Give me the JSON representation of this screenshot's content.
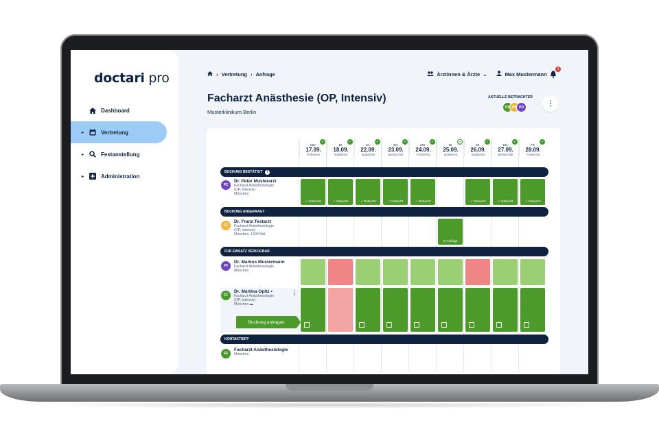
{
  "logo": {
    "main": "doctari",
    "suffix": " pro"
  },
  "sidebar": {
    "items": [
      {
        "label": "Dashboard",
        "icon": "home-icon"
      },
      {
        "label": "Vertretung",
        "icon": "calendar-icon"
      },
      {
        "label": "Festanstellung",
        "icon": "search-icon"
      },
      {
        "label": "Administration",
        "icon": "plus-icon"
      }
    ]
  },
  "breadcrumb": {
    "level1": "Vertretung",
    "level2": "Anfrage"
  },
  "header": {
    "doctors_menu": "Ärztinnen & Ärzte",
    "user_menu": "Max Mustermann",
    "notifications": "1"
  },
  "page": {
    "title": "Facharzt Anästhesie (OP, Intensiv)",
    "subtitle": "Musterklinikum Berlin"
  },
  "viewers": {
    "label": "AKTUELLE BETRACHTER",
    "avatars": [
      "PS",
      "PK",
      "PD"
    ]
  },
  "days": [
    {
      "dow": "MO.",
      "date": "17.09.",
      "shift": "Frühdienst"
    },
    {
      "dow": "DI.",
      "date": "18.09.",
      "shift": "Spätdienst"
    },
    {
      "dow": "SA.",
      "date": "22.09.",
      "shift": "Spätdienst"
    },
    {
      "dow": "SO.",
      "date": "23.09.",
      "shift": "Bereitschaft"
    },
    {
      "dow": "MO.",
      "date": "24.09.",
      "shift": "Frühdienst"
    },
    {
      "dow": "DI.",
      "date": "25.09.",
      "shift": "Spätdienst"
    },
    {
      "dow": "MI.",
      "date": "26.09.",
      "shift": "Spätdienst"
    },
    {
      "dow": "DO.",
      "date": "27.09.",
      "shift": "Bereitschaft"
    },
    {
      "dow": "FR.",
      "date": "28.09.",
      "shift": "Frühdienst"
    }
  ],
  "sections": {
    "confirmed": "BUCHUNG BESTÄTIGT",
    "requested": "BUCHUNG ANGEFRAGT",
    "available": "FÜR EINSATZ VERFÜGBAR",
    "contacted": "KONTAKTIERT"
  },
  "doctors": {
    "peter": {
      "initials": "PZ",
      "name": "Dr. Peter Musterarzt",
      "line1": "Facharzt Anästhesiologie",
      "line2": "(OP, Intensiv)",
      "line3": "München"
    },
    "franz": {
      "initials": "FF",
      "name": "Dr. Franz Testarzt",
      "line1": "Facharzt Anästhesiologie",
      "line2": "(OP, Intensiv)",
      "line3": "München, 150€/Std."
    },
    "markus": {
      "initials": "FF",
      "name": "Dr. Markus Mustermann",
      "line1": "Facharzt Anästhesiologie",
      "line2": "München"
    },
    "martina": {
      "initials": "FF",
      "name": "Dr. Martina Opitz",
      "line1": "Facharzt Anästhesiologie",
      "line2": "(OP, Intensiv)",
      "line3": "München"
    },
    "contacted": {
      "initials": "FF",
      "name": "Facharzt Anästhesiologie",
      "line1": "München"
    }
  },
  "labels": {
    "booked": "Gebucht",
    "request": "Anfrage",
    "book_button": "Buchung anfragen"
  },
  "colors": {
    "green": "#4b9a2a",
    "light_green": "#9bcf73",
    "red": "#f08585",
    "navy": "#0f2340",
    "active_nav": "#9ccbf6"
  }
}
